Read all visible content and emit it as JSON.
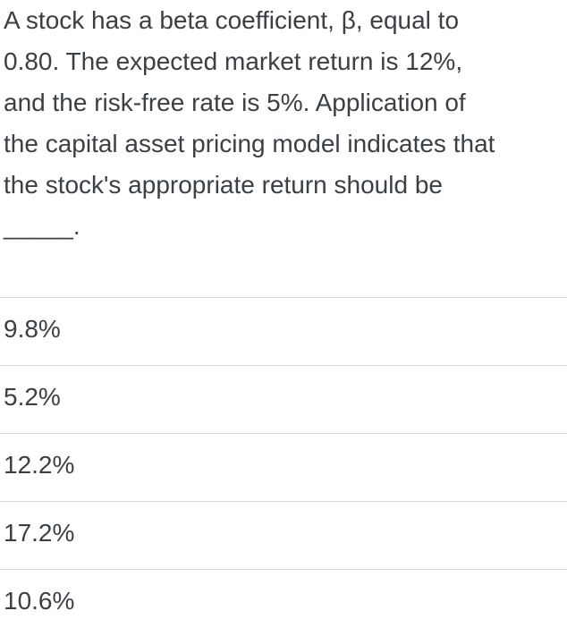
{
  "question": {
    "lines": [
      "A stock has a beta coefficient, β, equal to",
      "0.80. The expected market return is 12%,",
      "and the risk-free rate is 5%. Application of",
      "the capital asset pricing model indicates that",
      "the stock's appropriate return should be",
      "_____."
    ],
    "full_text": "A stock has a beta coefficient, β, equal to 0.80. The expected market return is 12%, and the risk-free rate is 5%. Application of the capital asset pricing model indicates that the stock's appropriate return should be _____."
  },
  "answers": [
    {
      "label": "9.8%"
    },
    {
      "label": "5.2%"
    },
    {
      "label": "12.2%"
    },
    {
      "label": "17.2%"
    },
    {
      "label": "10.6%"
    }
  ],
  "colors": {
    "text": "#3b4045",
    "divider": "#d9d9d9",
    "background": "#ffffff"
  }
}
